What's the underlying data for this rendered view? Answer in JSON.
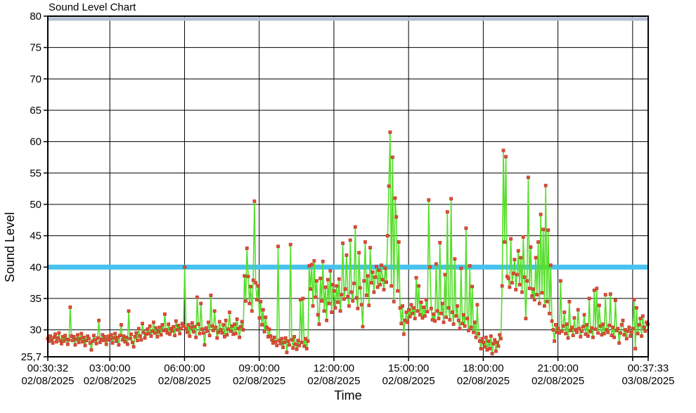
{
  "chart_data": {
    "type": "line",
    "title": "Sound Level Chart",
    "xlabel": "Time",
    "ylabel": "Sound Level",
    "ylim": [
      25.7,
      80
    ],
    "grid": true,
    "y_ticks": [
      {
        "v": 80,
        "label": "80"
      },
      {
        "v": 75,
        "label": "75"
      },
      {
        "v": 70,
        "label": "70"
      },
      {
        "v": 65,
        "label": "65"
      },
      {
        "v": 60,
        "label": "60"
      },
      {
        "v": 55,
        "label": "55"
      },
      {
        "v": 50,
        "label": "50"
      },
      {
        "v": 45,
        "label": "45"
      },
      {
        "v": 40,
        "label": "40"
      },
      {
        "v": 35,
        "label": "35"
      },
      {
        "v": 30,
        "label": "30"
      },
      {
        "v": 25.7,
        "label": "25,7"
      }
    ],
    "x_total_minutes": 1447,
    "x_ticks": [
      {
        "t": 0,
        "time": "00:30:32",
        "date": "02/08/2025"
      },
      {
        "t": 149.5,
        "time": "03:00:00",
        "date": "02/08/2025"
      },
      {
        "t": 329.5,
        "time": "06:00:00",
        "date": "02/08/2025"
      },
      {
        "t": 509.5,
        "time": "09:00:00",
        "date": "02/08/2025"
      },
      {
        "t": 689.5,
        "time": "12:00:00",
        "date": "02/08/2025"
      },
      {
        "t": 869.5,
        "time": "15:00:00",
        "date": "02/08/2025"
      },
      {
        "t": 1049.5,
        "time": "18:00:00",
        "date": "02/08/2025"
      },
      {
        "t": 1229.5,
        "time": "21:00:00",
        "date": "02/08/2025"
      },
      {
        "t": 1447,
        "time": "00:37:33",
        "date": "03/08/2025"
      }
    ],
    "extra_gridlines_t": [
      1409.5
    ],
    "thresholds": [
      {
        "value": 40,
        "color": "#47c2ef",
        "thickness": 7
      },
      {
        "value": 80,
        "color": "#b4bfd2",
        "thickness": 5
      }
    ],
    "series": {
      "line_color": "#56de2b",
      "marker_color": "#e14f38",
      "marker_edge_color": "#bf3a28",
      "marker_size": 4,
      "dt_minutes": 3,
      "start_minute": 0,
      "values": [
        28.6,
        28.2,
        29.0,
        28.4,
        27.9,
        28.8,
        29.3,
        28.1,
        28.7,
        29.5,
        28.3,
        27.8,
        28.9,
        28.2,
        29.1,
        28.5,
        27.7,
        28.4,
        33.6,
        29.0,
        28.3,
        28.9,
        27.6,
        28.5,
        29.2,
        28.0,
        28.6,
        29.4,
        28.1,
        28.8,
        27.5,
        28.3,
        29.0,
        28.6,
        27.9,
        26.8,
        28.2,
        29.1,
        28.4,
        27.8,
        28.7,
        31.5,
        28.0,
        28.5,
        29.2,
        28.3,
        28.9,
        27.7,
        28.4,
        29.0,
        28.5,
        29.2,
        27.9,
        28.7,
        29.4,
        28.2,
        28.8,
        27.6,
        29.1,
        30.8,
        28.4,
        29.0,
        28.1,
        28.8,
        27.7,
        33.0,
        28.6,
        29.3,
        28.0,
        27.3,
        28.9,
        29.5,
        28.3,
        30.2,
        29.0,
        28.4,
        31.0,
        29.6,
        28.7,
        29.3,
        30.1,
        29.4,
        30.6,
        29.0,
        29.8,
        31.2,
        29.5,
        30.3,
        28.9,
        29.7,
        30.4,
        29.2,
        30.8,
        29.9,
        32.5,
        30.0,
        29.5,
        30.9,
        29.3,
        30.2,
        29.8,
        30.5,
        29.1,
        31.4,
        30.0,
        30.7,
        29.4,
        30.2,
        31.0,
        30.6,
        40.0,
        30.2,
        29.6,
        30.8,
        29.0,
        30.4,
        31.1,
        29.7,
        30.5,
        28.8,
        35.2,
        30.9,
        29.4,
        34.2,
        30.1,
        29.5,
        27.6,
        30.3,
        29.8,
        31.2,
        29.1,
        35.5,
        30.6,
        29.9,
        33.0,
        30.4,
        28.7,
        29.6,
        31.3,
        30.0,
        29.5,
        30.8,
        28.9,
        31.5,
        29.2,
        30.1,
        32.8,
        29.8,
        30.6,
        29.3,
        30.9,
        29.4,
        31.7,
        30.2,
        28.8,
        30.5,
        31.3,
        30.0,
        38.6,
        34.6,
        43.0,
        38.5,
        34.2,
        36.9,
        33.0,
        37.9,
        50.5,
        37.5,
        34.8,
        37.0,
        31.9,
        34.5,
        30.8,
        33.2,
        29.7,
        32.0,
        30.4,
        28.9,
        30.1,
        29.0,
        28.4,
        27.9,
        28.8,
        28.1,
        27.5,
        43.3,
        28.3,
        27.8,
        28.6,
        27.2,
        28.0,
        28.7,
        26.4,
        28.2,
        27.6,
        43.6,
        28.4,
        27.1,
        28.9,
        27.7,
        26.9,
        28.3,
        27.5,
        34.8,
        28.0,
        35.0,
        27.4,
        28.6,
        27.0,
        28.2,
        40.2,
        36.5,
        40.4,
        33.8,
        41.0,
        35.2,
        37.8,
        32.4,
        30.9,
        38.2,
        34.6,
        40.9,
        33.0,
        36.8,
        31.5,
        38.0,
        34.2,
        39.4,
        32.8,
        37.2,
        36.2,
        33.5,
        37.0,
        34.4,
        38.1,
        33.0,
        35.6,
        43.8,
        34.9,
        36.5,
        41.9,
        35.3,
        33.8,
        44.3,
        36.0,
        34.6,
        37.4,
        46.4,
        35.1,
        33.4,
        42.3,
        36.7,
        34.0,
        30.5,
        37.8,
        44.0,
        35.5,
        38.6,
        33.9,
        43.1,
        37.5,
        39.2,
        36.0,
        38.4,
        40.1,
        36.8,
        39.5,
        37.2,
        40.3,
        38.0,
        36.4,
        39.8,
        37.6,
        45.0,
        52.9,
        61.5,
        37.0,
        57.5,
        34.5,
        51.0,
        48.0,
        36.2,
        44.0,
        33.5,
        31.0,
        33.8,
        29.3,
        31.5,
        32.8,
        31.2,
        33.2,
        32.1,
        34.0,
        32.6,
        33.5,
        31.8,
        38.3,
        33.0,
        37.0,
        32.4,
        34.4,
        31.9,
        33.6,
        32.2,
        34.8,
        32.9,
        50.7,
        40.0,
        33.4,
        31.6,
        32.5,
        31.4,
        40.5,
        33.0,
        31.8,
        43.9,
        32.6,
        34.2,
        31.2,
        38.8,
        32.0,
        48.8,
        33.5,
        31.6,
        50.9,
        32.8,
        30.9,
        41.3,
        32.2,
        33.8,
        31.5,
        30.2,
        39.8,
        31.0,
        32.4,
        30.6,
        46.2,
        31.8,
        29.9,
        40.2,
        30.4,
        36.9,
        29.6,
        31.2,
        28.8,
        34.0,
        29.4,
        28.2,
        27.0,
        28.6,
        28.0,
        27.3,
        28.8,
        26.8,
        28.2,
        27.0,
        29.0,
        26.2,
        27.8,
        28.4,
        26.6,
        28.0,
        27.4,
        29.2,
        28.6,
        37.0,
        58.6,
        44.0,
        57.6,
        38.5,
        38.2,
        36.8,
        44.5,
        37.5,
        39.0,
        41.2,
        36.4,
        38.8,
        42.6,
        37.2,
        41.5,
        36.0,
        44.8,
        38.4,
        31.8,
        37.8,
        54.3,
        36.6,
        43.2,
        35.4,
        36.5,
        34.8,
        41.5,
        35.6,
        44.0,
        34.2,
        48.4,
        35.9,
        46.0,
        33.8,
        53.0,
        34.5,
        45.9,
        32.6,
        40.3,
        31.4,
        30.0,
        28.2,
        30.8,
        29.6,
        30.2,
        29.5,
        37.8,
        29.8,
        30.6,
        32.8,
        29.4,
        30.9,
        28.7,
        34.5,
        29.9,
        30.4,
        29.1,
        31.9,
        30.0,
        29.6,
        33.2,
        30.2,
        28.9,
        29.8,
        30.5,
        32.4,
        29.3,
        30.8,
        29.0,
        35.0,
        29.7,
        30.3,
        28.8,
        36.3,
        30.1,
        36.6,
        29.5,
        33.9,
        30.6,
        29.2,
        30.9,
        29.4,
        35.6,
        30.0,
        29.6,
        30.7,
        35.7,
        29.1,
        30.4,
        28.8,
        34.7,
        29.9,
        30.2,
        27.9,
        29.5,
        30.8,
        31.5,
        29.2,
        30.0,
        28.6,
        29.8,
        30.4,
        29.0,
        29.6,
        30.2,
        34.8,
        27.0,
        33.5,
        29.4,
        30.8,
        31.8,
        29.0,
        32.2,
        30.4,
        29.8,
        31.2,
        30.9
      ]
    }
  }
}
